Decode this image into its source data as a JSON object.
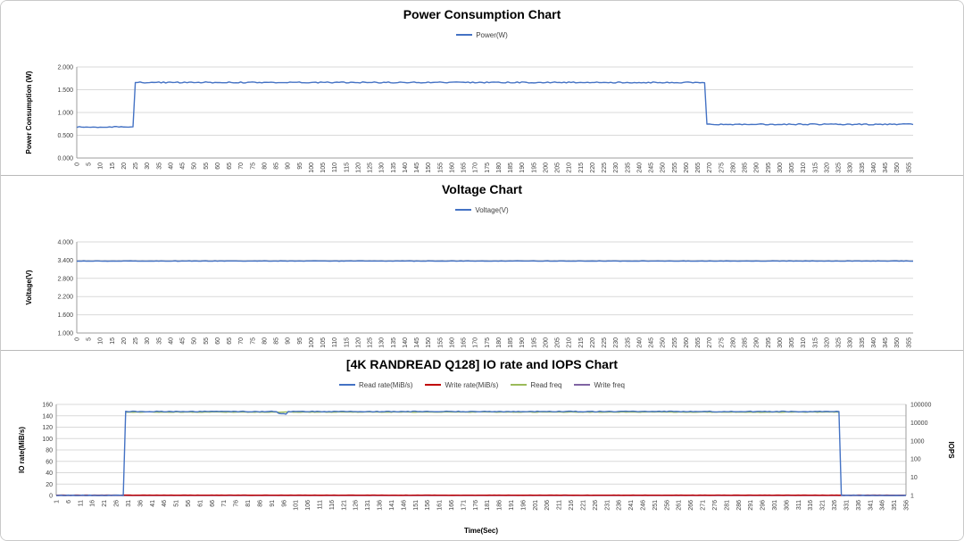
{
  "page": {
    "background": "#ffffff",
    "border_color": "#c9c9c9"
  },
  "chart_data": [
    {
      "type": "line",
      "title": "Power Consumption Chart",
      "ylabel": "Power Consumption (W)",
      "xlabel": "",
      "ylim": [
        0,
        2
      ],
      "yticks": [
        0,
        0.5,
        1,
        1.5,
        2
      ],
      "ytick_decimals": 3,
      "xlim": [
        0,
        357
      ],
      "xticks": {
        "start": 0,
        "step": 5,
        "end": 355
      },
      "grid": true,
      "legend_position": "top",
      "series": [
        {
          "name": "Power(W)",
          "color": "#4472c4",
          "axis": "left",
          "noise": 0.012,
          "segments": [
            {
              "x0": 0,
              "x1": 24,
              "y": 0.68
            },
            {
              "x0": 25,
              "x1": 268,
              "y": 1.66
            },
            {
              "x0": 269,
              "x1": 357,
              "y": 0.74
            }
          ]
        }
      ]
    },
    {
      "type": "line",
      "title": "Voltage Chart",
      "ylabel": "Voltage(V)",
      "xlabel": "",
      "ylim": [
        1,
        4
      ],
      "yticks": [
        1,
        1.6,
        2.2,
        2.8,
        3.4,
        4
      ],
      "ytick_decimals": 3,
      "xlim": [
        0,
        357
      ],
      "xticks": {
        "start": 0,
        "step": 5,
        "end": 355
      },
      "grid": true,
      "legend_position": "top",
      "series": [
        {
          "name": "Voltage(V)",
          "color": "#4472c4",
          "axis": "left",
          "noise": 0.006,
          "segments": [
            {
              "x0": 0,
              "x1": 357,
              "y": 3.37
            }
          ]
        }
      ]
    },
    {
      "type": "line",
      "title": "[4K RANDREAD Q128] IO rate and IOPS Chart",
      "ylabel": "IO rate(MiB/s)",
      "ylabel_right": "IOPS",
      "xlabel": "Time(Sec)",
      "ylim": [
        0,
        160
      ],
      "yticks": [
        0,
        20,
        40,
        60,
        80,
        100,
        120,
        140,
        160
      ],
      "ytick_decimals": 0,
      "right_axis": {
        "scale": "log",
        "lim": [
          1,
          100000
        ],
        "ticks": [
          1,
          10,
          100,
          1000,
          10000,
          100000
        ]
      },
      "xlim": [
        1,
        356
      ],
      "xticks": {
        "start": 1,
        "step": 5,
        "end": 356
      },
      "grid": true,
      "legend_position": "top",
      "series": [
        {
          "name": "Read rate(MiB/s)",
          "color": "#4472c4",
          "axis": "left",
          "noise": 0.7,
          "segments": [
            {
              "x0": 1,
              "x1": 29,
              "y": 0
            },
            {
              "x0": 30,
              "x1": 93,
              "y": 147.5
            },
            {
              "x0": 94,
              "x1": 97,
              "y": 143.5
            },
            {
              "x0": 98,
              "x1": 328,
              "y": 147.5
            },
            {
              "x0": 329,
              "x1": 356,
              "y": 0
            }
          ]
        },
        {
          "name": "Write rate(MiB/s)",
          "color": "#c00000",
          "axis": "left",
          "noise": 0.15,
          "segments": [
            {
              "x0": 1,
              "x1": 356,
              "y": 0.5
            }
          ]
        },
        {
          "name": "Read freq",
          "color": "#9bbb59",
          "axis": "right",
          "noise_rel": 0.03,
          "segments": [
            {
              "x0": 30,
              "x1": 328,
              "y": 37900
            }
          ]
        },
        {
          "name": "Write freq",
          "color": "#8064a2",
          "axis": "right",
          "segments": [
            {
              "x0": 1,
              "x1": 356,
              "y": 1
            }
          ]
        }
      ]
    }
  ]
}
